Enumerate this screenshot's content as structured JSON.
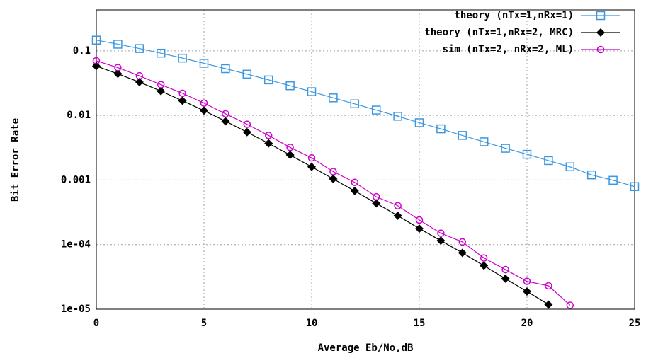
{
  "chart_data": {
    "type": "line",
    "xlabel": "Average Eb/No,dB",
    "ylabel": "Bit Error Rate",
    "x": [
      0,
      1,
      2,
      3,
      4,
      5,
      6,
      7,
      8,
      9,
      10,
      11,
      12,
      13,
      14,
      15,
      16,
      17,
      18,
      19,
      20,
      21,
      22,
      23,
      24,
      25
    ],
    "series": [
      {
        "name": "theory (nTx=1,nRx=1)",
        "color": "#3a97e0",
        "marker": "square",
        "values": [
          0.1464,
          0.1267,
          0.1085,
          0.0919,
          0.0771,
          0.0642,
          0.053,
          0.0435,
          0.0355,
          0.0288,
          0.0233,
          0.0187,
          0.0151,
          0.0121,
          0.0097,
          0.0077,
          0.0062,
          0.0049,
          0.0039,
          0.0031,
          0.0025,
          0.002,
          0.0016,
          0.0012,
          0.00099,
          0.00079
        ]
      },
      {
        "name": "theory (nTx=1,nRx=2, MRC)",
        "color": "#000000",
        "marker": "diamond",
        "values": [
          0.058,
          0.0441,
          0.0328,
          0.0238,
          0.0169,
          0.01184,
          0.00813,
          0.00551,
          0.00369,
          0.00244,
          0.0016,
          0.00104,
          0.000677,
          0.000436,
          0.00028,
          0.000177,
          0.000115,
          7.46e-05,
          4.71e-05,
          2.97e-05,
          1.88e-05,
          1.18e-05,
          null,
          null,
          null,
          null
        ]
      },
      {
        "name": "sim (nTx=2, nRx=2, ML)",
        "color": "#cc00cc",
        "marker": "circle",
        "values": [
          0.07,
          0.055,
          0.041,
          0.03,
          0.022,
          0.0155,
          0.0106,
          0.0073,
          0.0049,
          0.0032,
          0.0022,
          0.00135,
          0.00092,
          0.00055,
          0.0004,
          0.00024,
          0.00015,
          0.00011,
          6.2e-05,
          4.1e-05,
          2.7e-05,
          2.3e-05,
          1.15e-05,
          null,
          null,
          null
        ]
      }
    ],
    "xlim": [
      0,
      25
    ],
    "xticks": [
      0,
      5,
      10,
      15,
      20,
      25
    ],
    "ylim": [
      1e-05,
      0.43
    ],
    "ylog": true,
    "yticks": [
      {
        "value": 1e-05,
        "label": "1e-05"
      },
      {
        "value": 0.0001,
        "label": "1e-04"
      },
      0.001,
      0.01,
      0.1
    ],
    "grid": true,
    "legend": "top-right"
  }
}
